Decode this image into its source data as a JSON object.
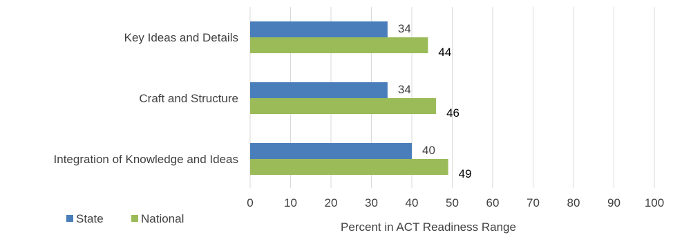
{
  "chart_data": {
    "type": "bar",
    "orientation": "horizontal",
    "categories": [
      "Key Ideas and Details",
      "Craft and Structure",
      "Integration of Knowledge and Ideas"
    ],
    "series": [
      {
        "name": "State",
        "values": [
          34,
          34,
          40
        ],
        "color": "#4a7ebb"
      },
      {
        "name": "National",
        "values": [
          44,
          46,
          49
        ],
        "color": "#9bbb59"
      }
    ],
    "xlabel": "Percent in ACT Readiness Range",
    "xlim": [
      0,
      100
    ],
    "xticks": [
      0,
      10,
      20,
      30,
      40,
      50,
      60,
      70,
      80,
      90,
      100
    ],
    "grid": true,
    "legend_position": "bottom-left",
    "data_labels": true
  }
}
